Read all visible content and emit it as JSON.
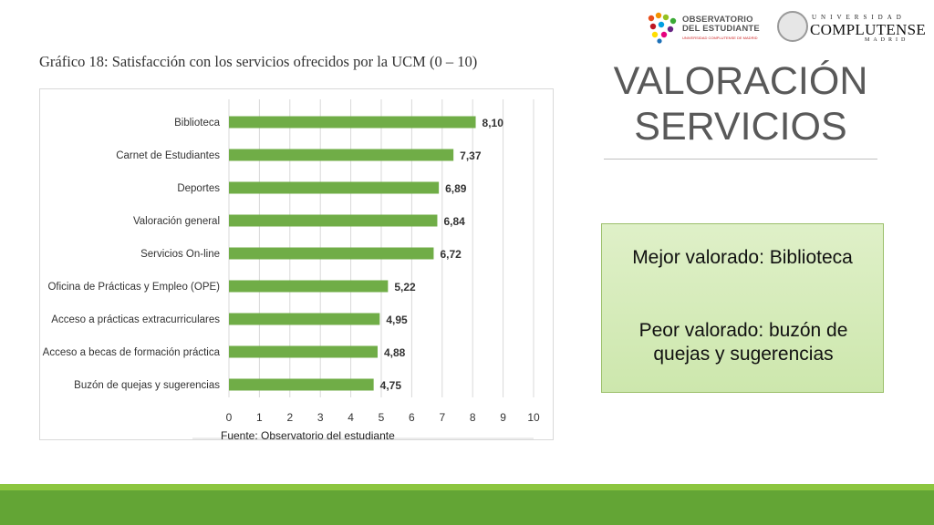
{
  "slide": {
    "title_line1": "VALORACIÓN",
    "title_line2": "SERVICIOS",
    "callout_best": "Mejor valorado: Biblioteca",
    "callout_worst": "Peor valorado: buzón de quejas y sugerencias"
  },
  "logos": {
    "obs_line1": "OBSERVATORIO",
    "obs_line2": "DEL ESTUDIANTE",
    "obs_sub": "UNIVERSIDAD COMPLUTENSE DE MADRID",
    "ucm_top": "UNIVERSIDAD",
    "ucm_mid": "COMPLUTENSE",
    "ucm_bot": "MADRID"
  },
  "colors": {
    "bar": "#70ad47",
    "footer_light": "#8cc63f",
    "footer_dark": "#63a535"
  },
  "chart_data": {
    "type": "bar",
    "orientation": "horizontal",
    "title": "Gráfico 18: Satisfacción con los servicios ofrecidos por la UCM (0 – 10)",
    "source": "Fuente: Observatorio del estudiante",
    "categories": [
      "Biblioteca",
      "Carnet de Estudiantes",
      "Deportes",
      "Valoración general",
      "Servicios On-line",
      "Oficina de Prácticas y Empleo (OPE)",
      "Acceso a prácticas extracurriculares",
      "Acceso a becas de formación práctica",
      "Buzón de quejas y sugerencias"
    ],
    "values": [
      8.1,
      7.37,
      6.89,
      6.84,
      6.72,
      5.22,
      4.95,
      4.88,
      4.75
    ],
    "value_labels": [
      "8,10",
      "7,37",
      "6,89",
      "6,84",
      "6,72",
      "5,22",
      "4,95",
      "4,88",
      "4,75"
    ],
    "xlim": [
      0,
      10
    ],
    "xticks": [
      "0",
      "1",
      "2",
      "3",
      "4",
      "5",
      "6",
      "7",
      "8",
      "9",
      "10"
    ],
    "grid": true
  }
}
